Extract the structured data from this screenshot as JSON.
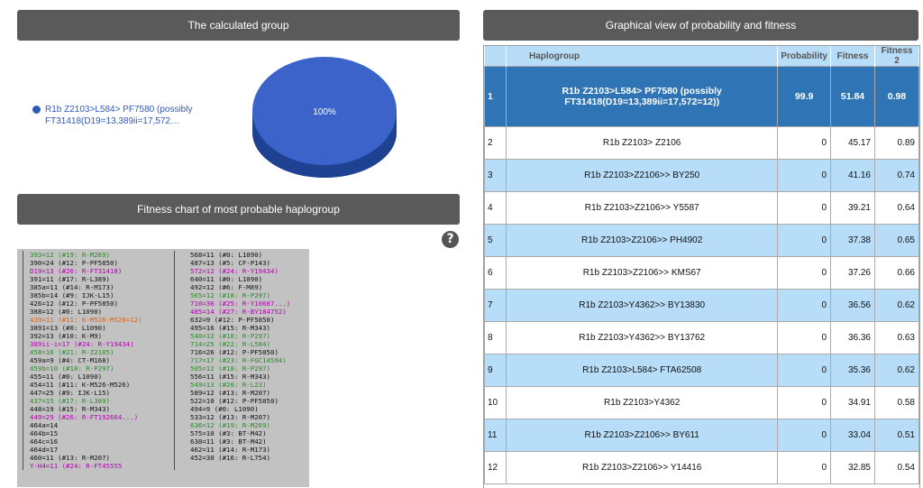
{
  "headers": {
    "group": "The calculated group",
    "fitness": "Fitness chart of most probable haplogroup",
    "graph": "Graphical view of probability and fitness"
  },
  "pie": {
    "legend_label": "R1b Z2103>L584> PF7580 (possibly FT31418(D19=13,389ii=17,572…",
    "slice_label": "100%",
    "value": 100,
    "color": "#3b63c9"
  },
  "help_icon": "question-circle-icon",
  "str_left": [
    {
      "t": "393=12 (#19: R-M269)",
      "c": "#2a8a2a"
    },
    {
      "t": "390=24 (#12: P-PF5850)",
      "c": "#111"
    },
    {
      "t": "D19=13 (#26: R-FT31418)",
      "c": "#b000b0"
    },
    {
      "t": "391=11 (#17: R-L389)",
      "c": "#111"
    },
    {
      "t": "385a=11 (#14: R-M173)",
      "c": "#111"
    },
    {
      "t": "385b=14 (#9: IJK-L15)",
      "c": "#111"
    },
    {
      "t": "426=12 (#12: P-PF5850)",
      "c": "#111"
    },
    {
      "t": "388=12 (#0: L1090)",
      "c": "#111"
    },
    {
      "t": "439=11 (#11: K-M526-M526=12)",
      "c": "#e06010"
    },
    {
      "t": "3891=13 (#0: L1090)",
      "c": "#111"
    },
    {
      "t": "392=13 (#10: K-M9)",
      "c": "#111"
    },
    {
      "t": "389ii-i=17 (#24: R-Y19434)",
      "c": "#b000b0"
    },
    {
      "t": "458=16 (#21: R-Z2105)",
      "c": "#2a8a2a"
    },
    {
      "t": "459a=9 (#4: CT-M168)",
      "c": "#111"
    },
    {
      "t": "459b=10 (#18: R-P297)",
      "c": "#2a8a2a"
    },
    {
      "t": "455=11 (#0: L1090)",
      "c": "#111"
    },
    {
      "t": "454=11 (#11: K-M526-M526)",
      "c": "#111"
    },
    {
      "t": "447=25 (#9: IJK-L15)",
      "c": "#111"
    },
    {
      "t": "437=15 (#17: R-L389)",
      "c": "#2a8a2a"
    },
    {
      "t": "448=19 (#15: R-M343)",
      "c": "#111"
    },
    {
      "t": "449=29 (#26: R-FT192664...)",
      "c": "#b000b0"
    },
    {
      "t": "464a=14",
      "c": "#111"
    },
    {
      "t": "464b=15",
      "c": "#111"
    },
    {
      "t": "464c=16",
      "c": "#111"
    },
    {
      "t": "464d=17",
      "c": "#111"
    },
    {
      "t": "460=11 (#13: R-M207)",
      "c": "#111"
    },
    {
      "t": "Y-H4=11 (#24: R-FT45555",
      "c": "#b000b0"
    }
  ],
  "str_right": [
    {
      "t": "568=11 (#0: L1090)",
      "c": "#111"
    },
    {
      "t": "487=13 (#5: CF-P143)",
      "c": "#111"
    },
    {
      "t": "572=12 (#24: R-Y19434)",
      "c": "#b000b0"
    },
    {
      "t": "640=11 (#0: L1090)",
      "c": "#111"
    },
    {
      "t": "492=12 (#6: F-M89)",
      "c": "#111"
    },
    {
      "t": "565=12 (#18: R-P297)",
      "c": "#2a8a2a"
    },
    {
      "t": "710=36 (#25: R-Y10687...)",
      "c": "#b000b0"
    },
    {
      "t": "485=14 (#27: R-BY184752)",
      "c": "#b000b0"
    },
    {
      "t": "632=9 (#12: P-PF5850)",
      "c": "#111"
    },
    {
      "t": "495=16 (#15: R-M343)",
      "c": "#111"
    },
    {
      "t": "540=12 (#18: R-P297)",
      "c": "#2a8a2a"
    },
    {
      "t": "714=25 (#22: R-L584)",
      "c": "#2a8a2a"
    },
    {
      "t": "716=26 (#12: P-PF5850)",
      "c": "#111"
    },
    {
      "t": "717=17 (#23: R-FGC14594)",
      "c": "#2a8a2a"
    },
    {
      "t": "505=12 (#18: R-P297)",
      "c": "#2a8a2a"
    },
    {
      "t": "556=11 (#15: R-M343)",
      "c": "#111"
    },
    {
      "t": "549=13 (#20: R-L23)",
      "c": "#2a8a2a"
    },
    {
      "t": "589=12 (#13: R-M207)",
      "c": "#111"
    },
    {
      "t": "522=10 (#12: P-PF5850)",
      "c": "#111"
    },
    {
      "t": "494=9 (#0: L1090)",
      "c": "#111"
    },
    {
      "t": "533=12 (#13: R-M207)",
      "c": "#111"
    },
    {
      "t": "636=12 (#19: R-M269)",
      "c": "#2a8a2a"
    },
    {
      "t": "575=10 (#3: BT-M42)",
      "c": "#111"
    },
    {
      "t": "638=11 (#3: BT-M42)",
      "c": "#111"
    },
    {
      "t": "462=11 (#14: R-M173)",
      "c": "#111"
    },
    {
      "t": "452=30 (#16: R-L754)",
      "c": "#111"
    },
    {
      "t": "",
      "c": "#111"
    }
  ],
  "table": {
    "headers": [
      "Haplogroup",
      "Probability",
      "Fitness",
      "Fitness 2"
    ],
    "rows": [
      {
        "n": "1",
        "hap": "R1b Z2103>L584> PF7580 (possibly FT31418(D19=13,389ii=17,572=12))",
        "p": "99.9",
        "f": "51.84",
        "f2": "0.98"
      },
      {
        "n": "2",
        "hap": "R1b Z2103> Z2106",
        "p": "0",
        "f": "45.17",
        "f2": "0.89"
      },
      {
        "n": "3",
        "hap": "R1b Z2103>Z2106>> BY250",
        "p": "0",
        "f": "41.16",
        "f2": "0.74"
      },
      {
        "n": "4",
        "hap": "R1b Z2103>Z2106>> Y5587",
        "p": "0",
        "f": "39.21",
        "f2": "0.64"
      },
      {
        "n": "5",
        "hap": "R1b Z2103>Z2106>> PH4902",
        "p": "0",
        "f": "37.38",
        "f2": "0.65"
      },
      {
        "n": "6",
        "hap": "R1b Z2103>Z2106>> KMS67",
        "p": "0",
        "f": "37.26",
        "f2": "0.66"
      },
      {
        "n": "7",
        "hap": "R1b Z2103>Y4362>> BY13830",
        "p": "0",
        "f": "36.56",
        "f2": "0.62"
      },
      {
        "n": "8",
        "hap": "R1b Z2103>Y4362>> BY13762",
        "p": "0",
        "f": "36.36",
        "f2": "0.63"
      },
      {
        "n": "9",
        "hap": "R1b Z2103>L584> FTA62508",
        "p": "0",
        "f": "35.36",
        "f2": "0.62"
      },
      {
        "n": "10",
        "hap": "R1b Z2103>Y4362",
        "p": "0",
        "f": "34.91",
        "f2": "0.58"
      },
      {
        "n": "11",
        "hap": "R1b Z2103>Z2106>> BY611",
        "p": "0",
        "f": "33.04",
        "f2": "0.51"
      },
      {
        "n": "12",
        "hap": "R1b Z2103>Z2106>> Y14416",
        "p": "0",
        "f": "32.85",
        "f2": "0.54"
      }
    ]
  }
}
